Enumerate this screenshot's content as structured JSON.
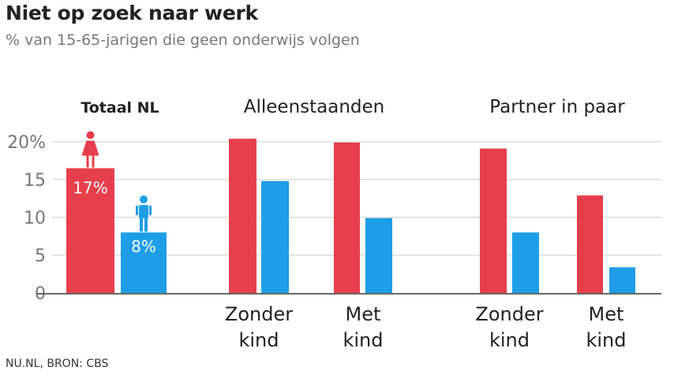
{
  "title": "Niet op zoek naar werk",
  "subtitle": "% van 15-65-jarigen die geen onderwijs volgen",
  "source": "NU.NL, BRON: CBS",
  "colors": {
    "women": "#e63f4b",
    "men": "#1e9ee6",
    "grid": "#e4e4e4",
    "axis": "#666666",
    "tick": "#777777"
  },
  "icons": {
    "women": "woman-icon",
    "men": "man-icon"
  },
  "chart_data": {
    "type": "bar",
    "ylim": [
      0,
      20
    ],
    "yticks": [
      0,
      5,
      10,
      15,
      20
    ],
    "ytick_labels": [
      "0",
      "5",
      "10",
      "15",
      "20%"
    ],
    "grid": true,
    "groups": [
      {
        "label": "Totaal NL",
        "bold": true,
        "sub": [
          {
            "label_lines": [],
            "women": 16.5,
            "men": 8.0,
            "women_label": "17%",
            "men_label": "8%"
          }
        ]
      },
      {
        "label": "Alleenstaanden",
        "bold": false,
        "sub": [
          {
            "label_lines": [
              "Zonder",
              "kind"
            ],
            "women": 20.4,
            "men": 14.8
          },
          {
            "label_lines": [
              "Met",
              "kind"
            ],
            "women": 19.9,
            "men": 9.9
          }
        ]
      },
      {
        "label": "Partner in paar",
        "bold": false,
        "sub": [
          {
            "label_lines": [
              "Zonder",
              "kind"
            ],
            "women": 19.1,
            "men": 8.0
          },
          {
            "label_lines": [
              "Met",
              "kind"
            ],
            "women": 12.9,
            "men": 3.4
          }
        ]
      }
    ]
  }
}
